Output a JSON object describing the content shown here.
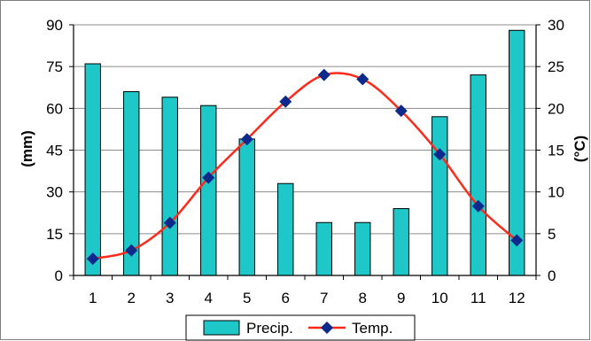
{
  "chart_data": {
    "type": "bar",
    "categories": [
      "1",
      "2",
      "3",
      "4",
      "5",
      "6",
      "7",
      "8",
      "9",
      "10",
      "11",
      "12"
    ],
    "series": [
      {
        "name": "Precip.",
        "type": "bar",
        "axis": "left",
        "color": "#1fc8c8",
        "values": [
          76,
          66,
          64,
          61,
          49,
          33,
          19,
          19,
          24,
          57,
          72,
          88
        ]
      },
      {
        "name": "Temp.",
        "type": "line",
        "axis": "right",
        "color": "#ff2a1a",
        "marker_color": "#0b2a8c",
        "values": [
          2,
          3,
          6.3,
          11.7,
          16.3,
          20.8,
          24,
          23.5,
          19.7,
          14.5,
          8.3,
          4.2
        ]
      }
    ],
    "ylabel_left": "(mm)",
    "ylabel_right": "(°C)",
    "ylim_left": [
      0,
      90
    ],
    "ylim_right": [
      0,
      30
    ],
    "yticks_left": [
      "0",
      "15",
      "30",
      "45",
      "60",
      "75",
      "90"
    ],
    "yticks_right": [
      "0",
      "5",
      "10",
      "15",
      "20",
      "25",
      "30"
    ],
    "grid": true,
    "legend_position": "bottom"
  }
}
